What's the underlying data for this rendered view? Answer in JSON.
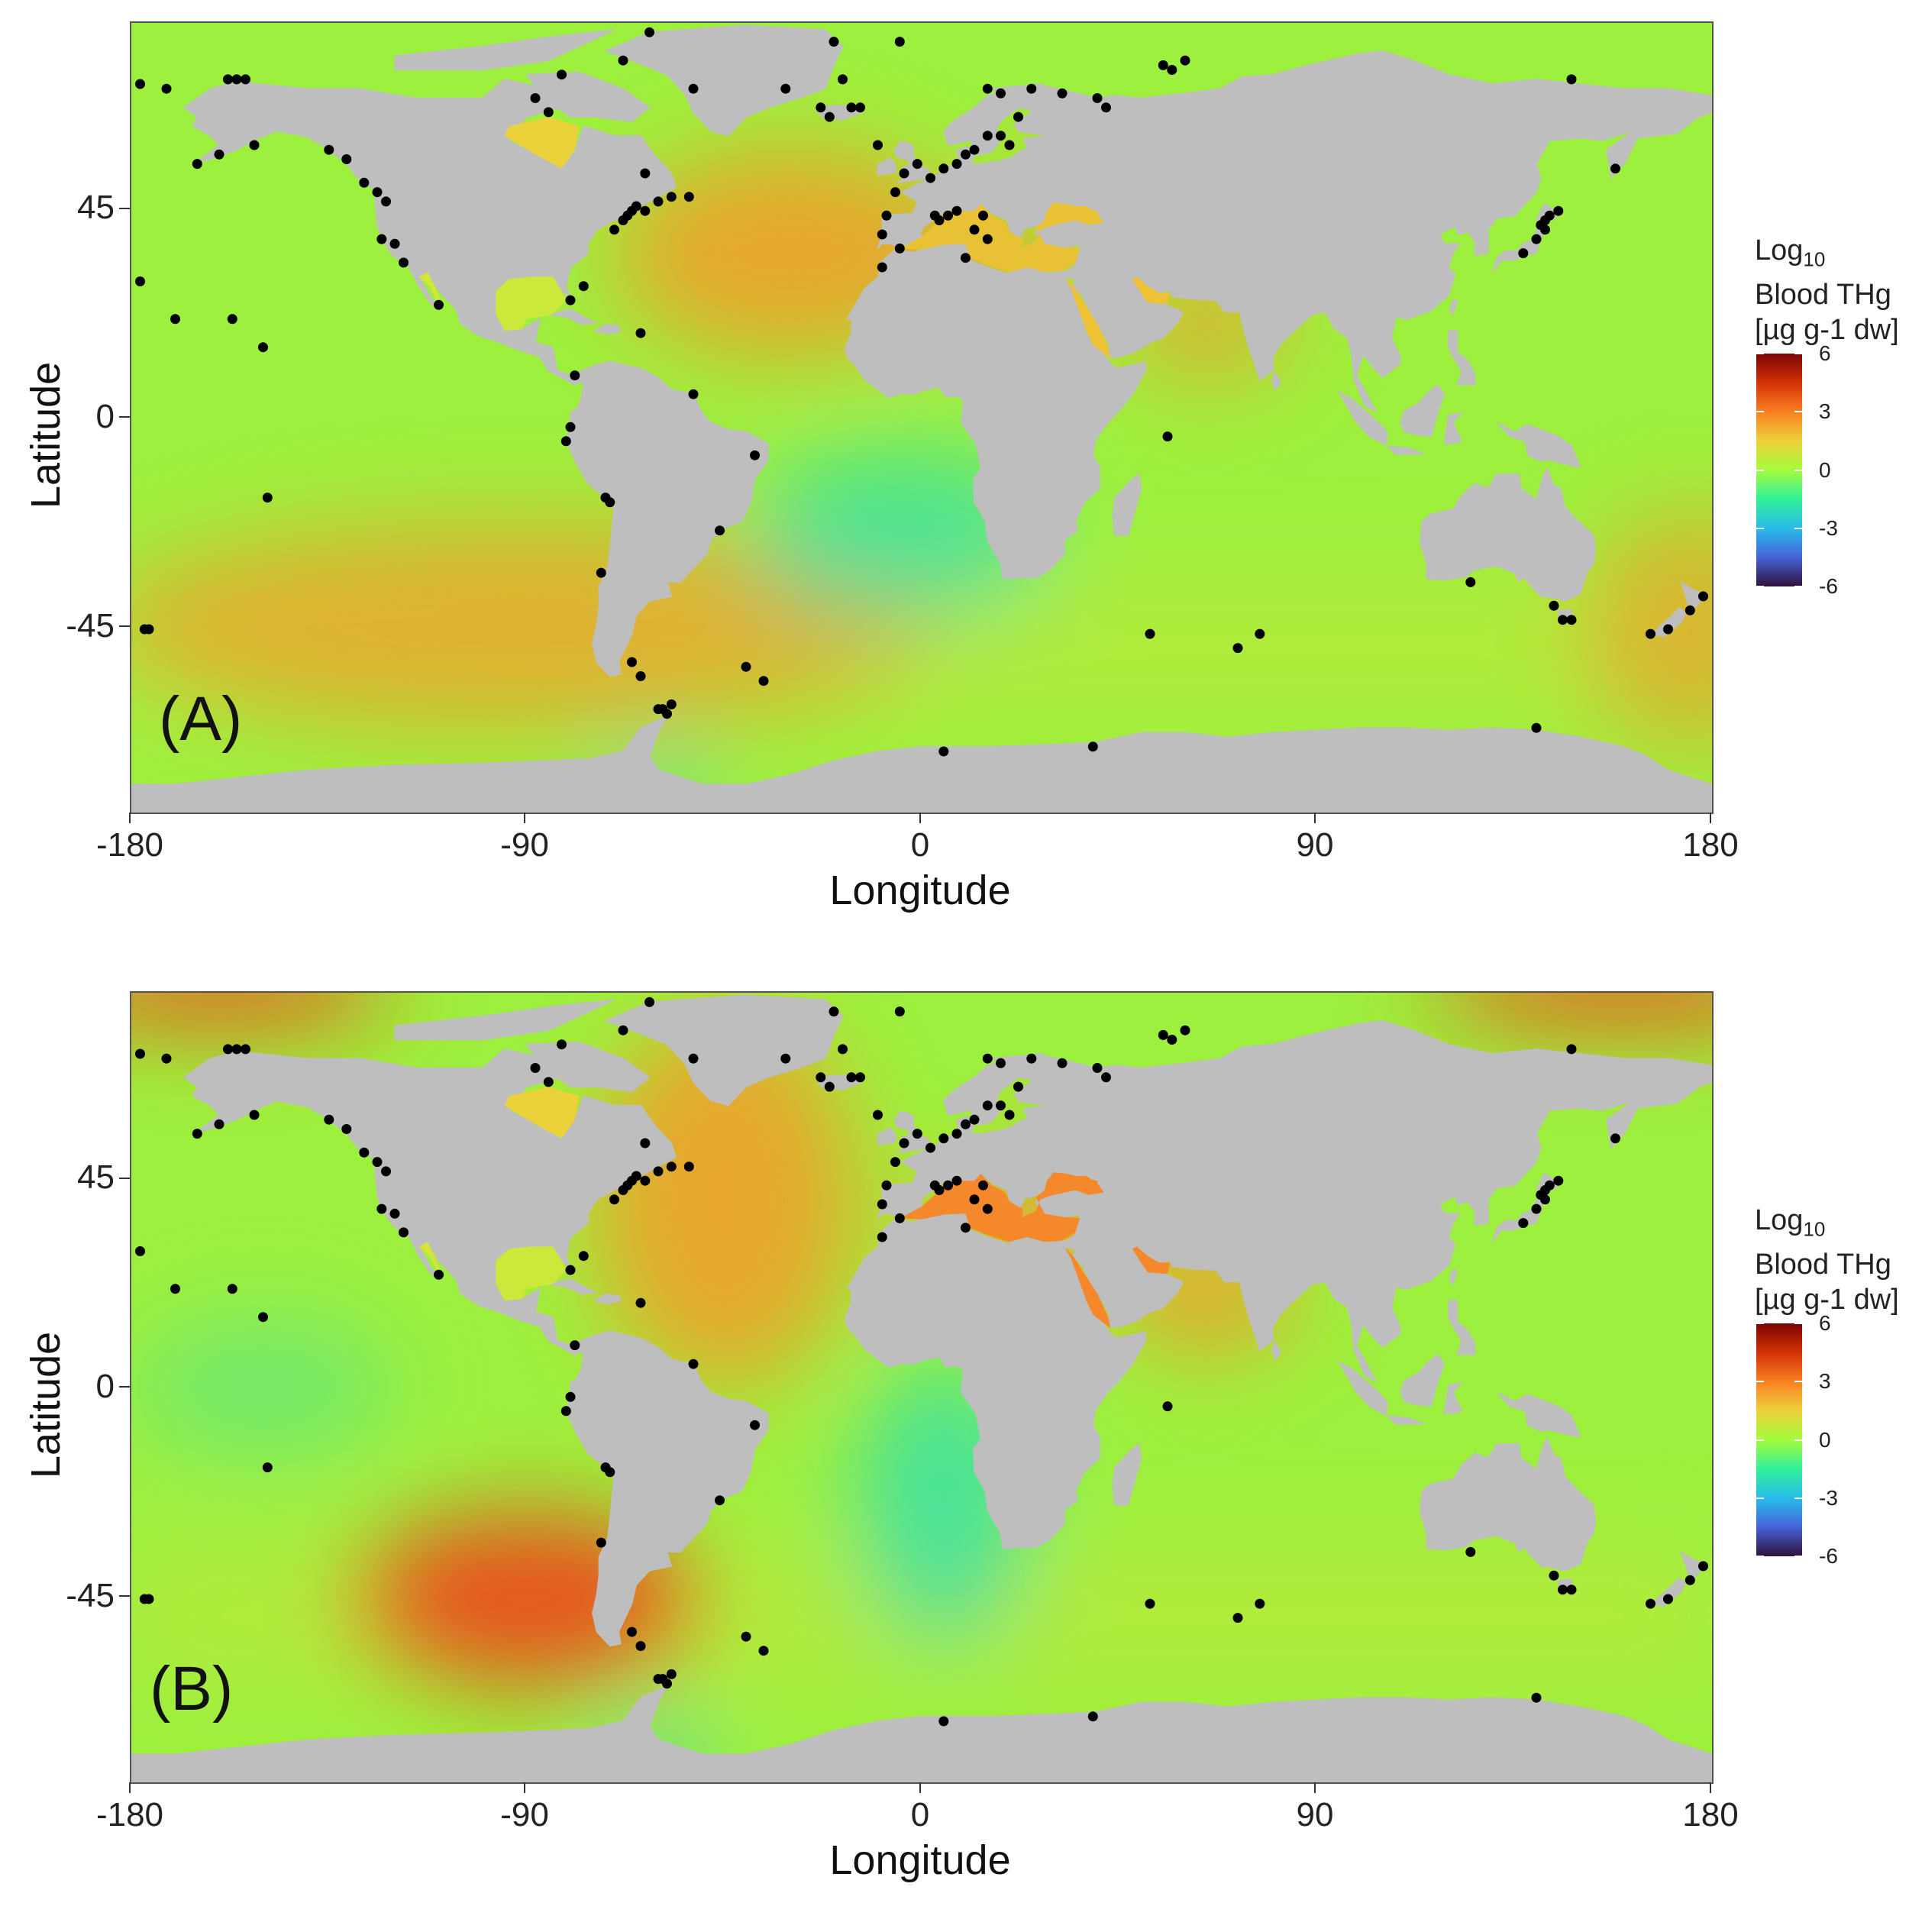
{
  "figure": {
    "panels": [
      {
        "tag": "(A)",
        "x_ticks": [
          "-180",
          "-90",
          "0",
          "90",
          "180"
        ],
        "y_ticks": [
          "45",
          "0",
          "-45"
        ],
        "x_title": "Longitude",
        "y_title": "Latitude",
        "hotspots": [
          {
            "lon": -92,
            "lat": -44,
            "strength": 0.55,
            "rx": 95,
            "ry": 22
          },
          {
            "lon": -30,
            "lat": 35,
            "strength": 0.7,
            "rx": 40,
            "ry": 22
          },
          {
            "lon": 20,
            "lat": 35,
            "strength": 0.7,
            "rx": 20,
            "ry": 8
          },
          {
            "lon": 65,
            "lat": 20,
            "strength": 0.55,
            "rx": 20,
            "ry": 12
          },
          {
            "lon": 175,
            "lat": -45,
            "strength": 0.5,
            "rx": 25,
            "ry": 25
          }
        ],
        "coldspots": [
          {
            "lon": -5,
            "lat": -25,
            "strength": 0.75,
            "rx": 35,
            "ry": 18
          },
          {
            "lon": -60,
            "lat": -78,
            "strength": 0.7,
            "rx": 12,
            "ry": 6
          }
        ]
      },
      {
        "tag": "(B)",
        "x_ticks": [
          "-180",
          "-90",
          "0",
          "90",
          "180"
        ],
        "y_ticks": [
          "45",
          "0",
          "-45"
        ],
        "x_title": "Longitude",
        "y_title": "Latitude",
        "hotspots": [
          {
            "lon": -90,
            "lat": -45,
            "strength": 0.9,
            "rx": 40,
            "ry": 18
          },
          {
            "lon": -160,
            "lat": 85,
            "strength": 1.0,
            "rx": 40,
            "ry": 8
          },
          {
            "lon": 160,
            "lat": 85,
            "strength": 1.0,
            "rx": 45,
            "ry": 8
          },
          {
            "lon": -45,
            "lat": 40,
            "strength": 0.7,
            "rx": 30,
            "ry": 40
          },
          {
            "lon": 25,
            "lat": 35,
            "strength": 0.85,
            "rx": 25,
            "ry": 10
          },
          {
            "lon": 65,
            "lat": 20,
            "strength": 0.75,
            "rx": 20,
            "ry": 12
          }
        ],
        "coldspots": [
          {
            "lon": 5,
            "lat": -25,
            "strength": 0.8,
            "rx": 20,
            "ry": 30
          },
          {
            "lon": -150,
            "lat": 0,
            "strength": 0.4,
            "rx": 30,
            "ry": 15
          },
          {
            "lon": -60,
            "lat": -78,
            "strength": 0.9,
            "rx": 12,
            "ry": 6
          }
        ]
      }
    ],
    "legend": {
      "title_line1": "Log",
      "title_sub": "10",
      "title_line2": "Blood THg",
      "title_line3": "[µg g-1 dw]",
      "ticks": [
        "6",
        "3",
        "0",
        "-3",
        "-6"
      ],
      "colors": [
        "#7a0403",
        "#d23105",
        "#fb8022",
        "#edd03a",
        "#a3fd3d",
        "#31f199",
        "#28bceb",
        "#4662d7",
        "#30123b"
      ]
    },
    "colors": {
      "land": "#bebebe",
      "ocean_base": "#9ef03e",
      "point": "#000000"
    },
    "sample_sites": [
      [
        -178,
        71
      ],
      [
        -172,
        70
      ],
      [
        -158,
        72
      ],
      [
        -156,
        72
      ],
      [
        -154,
        72
      ],
      [
        -165,
        54
      ],
      [
        -160,
        56
      ],
      [
        -152,
        58
      ],
      [
        -135,
        57
      ],
      [
        -131,
        55
      ],
      [
        -127,
        50
      ],
      [
        -124,
        48
      ],
      [
        -122,
        46
      ],
      [
        -120,
        37
      ],
      [
        -123,
        38
      ],
      [
        -118,
        33
      ],
      [
        -110,
        24
      ],
      [
        -157,
        21
      ],
      [
        -178,
        29
      ],
      [
        -170,
        21
      ],
      [
        -150,
        15
      ],
      [
        -149,
        -17
      ],
      [
        -176,
        -45
      ],
      [
        -177,
        -45
      ],
      [
        -79,
        9
      ],
      [
        -80,
        -2
      ],
      [
        -81,
        -5
      ],
      [
        -71,
        -18
      ],
      [
        -72,
        -17
      ],
      [
        -73,
        -33
      ],
      [
        -66,
        -52
      ],
      [
        -64,
        -55
      ],
      [
        -60,
        -62
      ],
      [
        -59,
        -62
      ],
      [
        -58,
        -63
      ],
      [
        -57,
        -61
      ],
      [
        -40,
        -53
      ],
      [
        -36,
        -56
      ],
      [
        -46,
        -24
      ],
      [
        -38,
        -8
      ],
      [
        -52,
        5
      ],
      [
        -64,
        18
      ],
      [
        -77,
        28
      ],
      [
        -80,
        25
      ],
      [
        -70,
        40
      ],
      [
        -68,
        42
      ],
      [
        -67,
        43
      ],
      [
        -66,
        44
      ],
      [
        -65,
        45
      ],
      [
        -63,
        44
      ],
      [
        -60,
        46
      ],
      [
        -57,
        47
      ],
      [
        -53,
        47
      ],
      [
        -63,
        52
      ],
      [
        -85,
        65
      ],
      [
        -88,
        68
      ],
      [
        -82,
        73
      ],
      [
        -68,
        76
      ],
      [
        -62,
        82
      ],
      [
        -52,
        70
      ],
      [
        -21,
        64
      ],
      [
        -23,
        66
      ],
      [
        -16,
        66
      ],
      [
        -14,
        66
      ],
      [
        -18,
        72
      ],
      [
        -5,
        80
      ],
      [
        -10,
        58
      ],
      [
        -4,
        52
      ],
      [
        -6,
        48
      ],
      [
        -1,
        54
      ],
      [
        2,
        51
      ],
      [
        5,
        53
      ],
      [
        8,
        54
      ],
      [
        10,
        56
      ],
      [
        12,
        57
      ],
      [
        15,
        60
      ],
      [
        18,
        60
      ],
      [
        20,
        58
      ],
      [
        22,
        64
      ],
      [
        18,
        69
      ],
      [
        15,
        70
      ],
      [
        25,
        70
      ],
      [
        32,
        69
      ],
      [
        40,
        68
      ],
      [
        42,
        66
      ],
      [
        55,
        75
      ],
      [
        57,
        74
      ],
      [
        60,
        76
      ],
      [
        14,
        43
      ],
      [
        6,
        43
      ],
      [
        3,
        43
      ],
      [
        4,
        42
      ],
      [
        -5,
        36
      ],
      [
        -9,
        39
      ],
      [
        -8,
        43
      ],
      [
        8,
        44
      ],
      [
        12,
        40
      ],
      [
        15,
        38
      ],
      [
        10,
        34
      ],
      [
        -9,
        32
      ],
      [
        142,
        40
      ],
      [
        141,
        41
      ],
      [
        142,
        42
      ],
      [
        143,
        43
      ],
      [
        145,
        44
      ],
      [
        140,
        38
      ],
      [
        137,
        35
      ],
      [
        148,
        72
      ],
      [
        158,
        53
      ],
      [
        178,
        -38
      ],
      [
        170,
        -45
      ],
      [
        166,
        -46
      ],
      [
        175,
        -41
      ],
      [
        125,
        -35
      ],
      [
        144,
        -40
      ],
      [
        146,
        -43
      ],
      [
        148,
        -43
      ],
      [
        56,
        -4
      ],
      [
        52,
        -46
      ],
      [
        77,
        -46
      ],
      [
        72,
        -49
      ],
      [
        39,
        -70
      ],
      [
        5,
        -71
      ],
      [
        140,
        -66
      ],
      [
        -20,
        80
      ],
      [
        -31,
        70
      ]
    ]
  }
}
